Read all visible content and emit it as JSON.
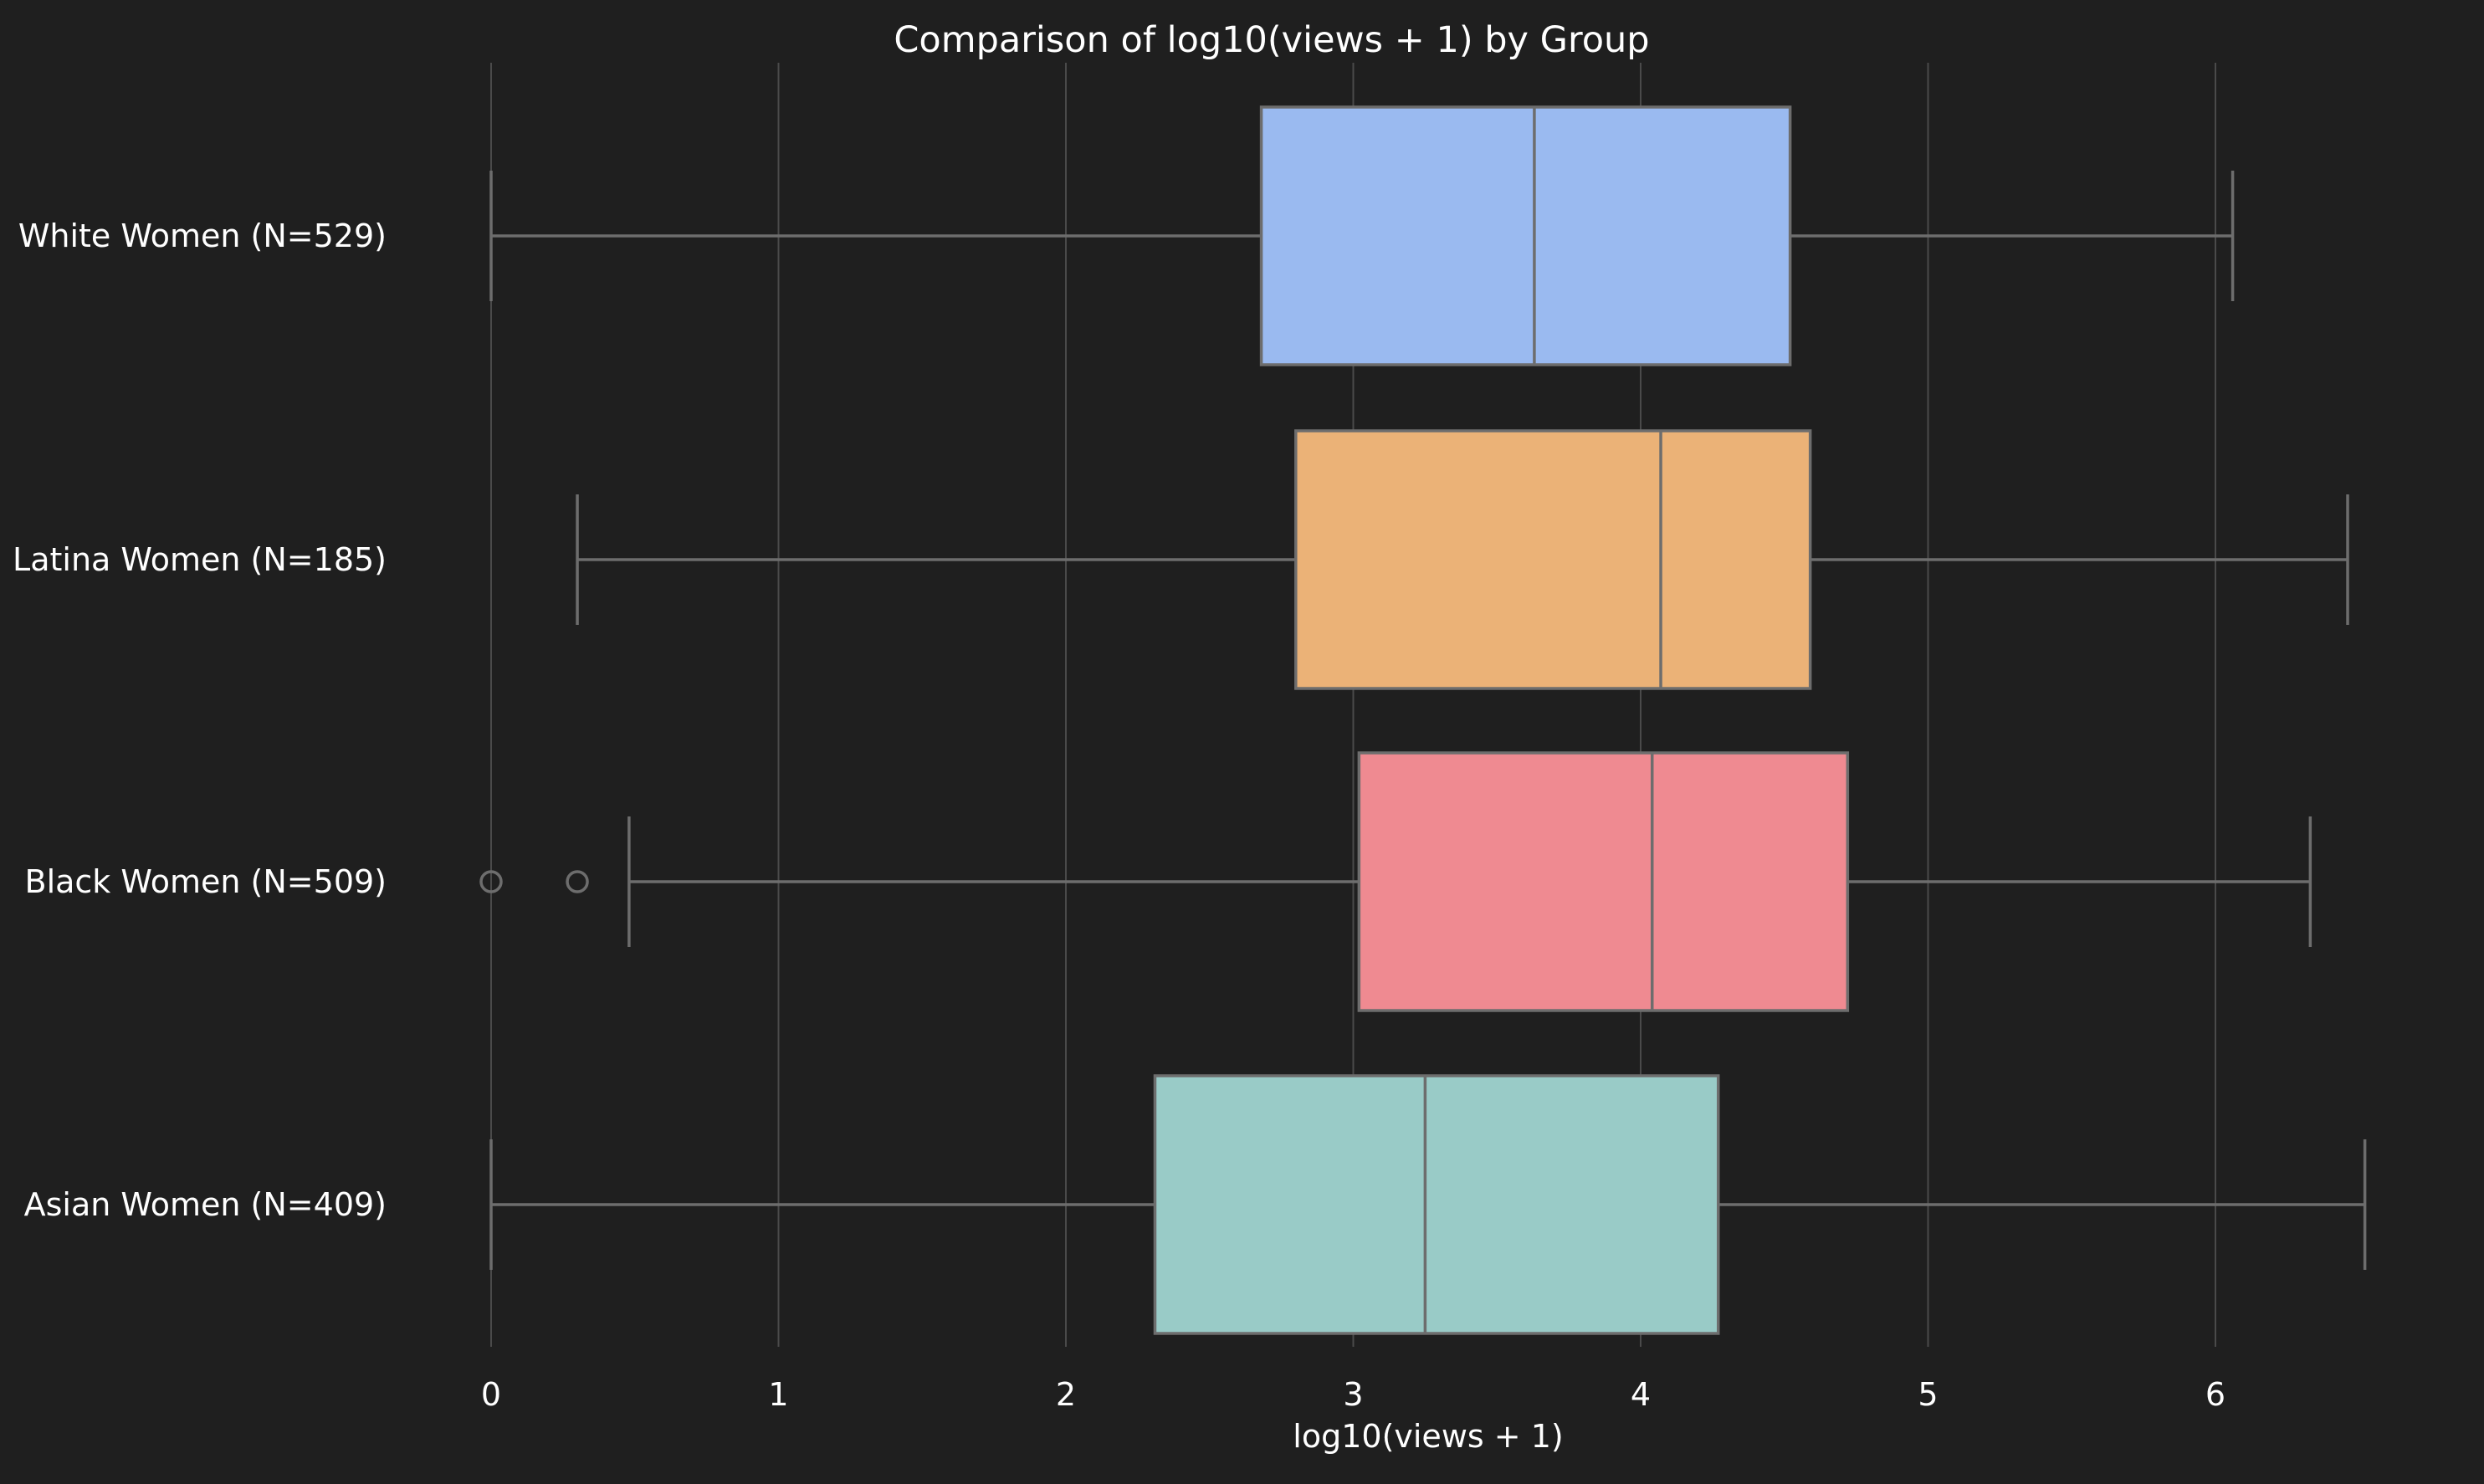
{
  "chart_data": {
    "type": "boxplot",
    "orientation": "horizontal",
    "title": "Comparison of log10(views + 1) by Group",
    "xlabel": "log10(views + 1)",
    "ylabel": "",
    "xlim": [
      -0.15,
      6.6
    ],
    "xticks": [
      0,
      1,
      2,
      3,
      4,
      5,
      6
    ],
    "xtick_labels": [
      "0",
      "1",
      "2",
      "3",
      "4",
      "5",
      "6"
    ],
    "grid": "vertical",
    "legend": "none",
    "categories": [
      "White Women (N=529)",
      "Latina Women (N=185)",
      "Black Women (N=509)",
      "Asian Women (N=409)"
    ],
    "boxes": [
      {
        "label": "White Women (N=529)",
        "whisker_low": 0.0,
        "q1": 2.68,
        "median": 3.63,
        "q3": 4.52,
        "whisker_high": 6.06,
        "outliers": [],
        "color": "#9abaf0"
      },
      {
        "label": "Latina Women (N=185)",
        "whisker_low": 0.3,
        "q1": 2.8,
        "median": 4.07,
        "q3": 4.59,
        "whisker_high": 6.46,
        "outliers": [],
        "color": "#ebb277"
      },
      {
        "label": "Black Women (N=509)",
        "whisker_low": 0.48,
        "q1": 3.02,
        "median": 4.04,
        "q3": 4.72,
        "whisker_high": 6.33,
        "outliers": [
          0.0,
          0.3
        ],
        "color": "#ef8a91"
      },
      {
        "label": "Asian Women (N=409)",
        "whisker_low": 0.0,
        "q1": 2.31,
        "median": 3.25,
        "q3": 4.27,
        "whisker_high": 6.52,
        "outliers": [],
        "color": "#99cbc7"
      }
    ],
    "colors": {
      "background": "#1f1f1f",
      "grid": "#4a4a4a",
      "box_edge": "#6d6d6d",
      "text": "#ffffff"
    }
  }
}
